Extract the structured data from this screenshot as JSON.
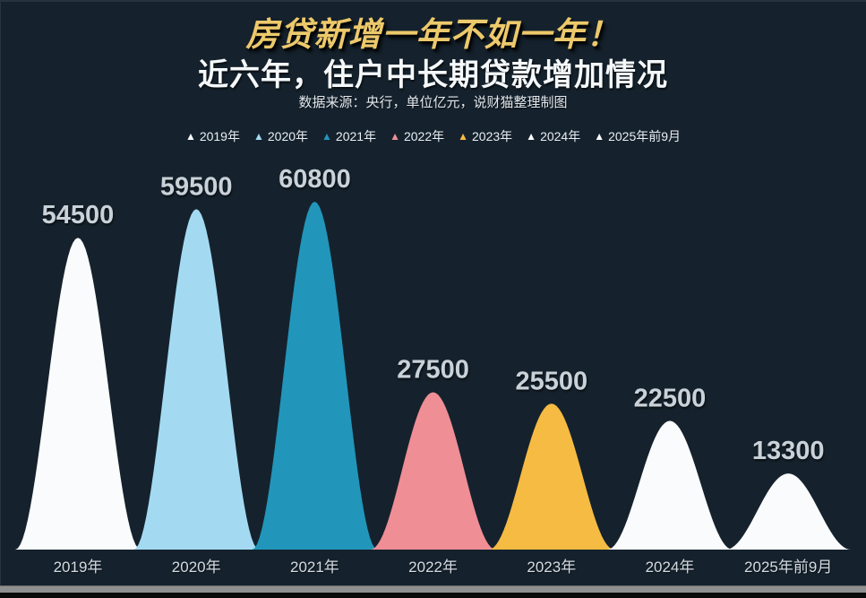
{
  "page": {
    "title": "房贷新增一年不如一年！",
    "subtitle": "近六年，住户中长期贷款增加情况",
    "source_note": "数据来源：央行，单位亿元，说财猫整理制图"
  },
  "colors": {
    "background": "#15222d",
    "title_gold": "#edc96b",
    "value_label": "#c9d1d9",
    "axis_label": "#d4dbe2",
    "legend_text": "#e9eef3"
  },
  "chart_data": {
    "type": "area",
    "shape": "bell-peaks",
    "title": "近六年，住户中长期贷款增加情况",
    "unit": "亿元",
    "categories": [
      "2019年",
      "2020年",
      "2021年",
      "2022年",
      "2023年",
      "2024年",
      "2025年前9月"
    ],
    "values": [
      54500,
      59500,
      60800,
      27500,
      25500,
      22500,
      13300
    ],
    "series_colors": [
      "#fafbfc",
      "#a3daf2",
      "#2196ba",
      "#ef8e95",
      "#f6bb43",
      "#fafbfc",
      "#fafbfc"
    ],
    "ylim": [
      0,
      60800
    ],
    "grid": false,
    "legend_position": "top",
    "legend": [
      {
        "label": "2019年",
        "color": "#fafbfc"
      },
      {
        "label": "2020年",
        "color": "#a3daf2"
      },
      {
        "label": "2021年",
        "color": "#2196ba"
      },
      {
        "label": "2022年",
        "color": "#ef8e95"
      },
      {
        "label": "2023年",
        "color": "#f6bb43"
      },
      {
        "label": "2024年",
        "color": "#fafbfc"
      },
      {
        "label": "2025年前9月",
        "color": "#fafbfc"
      }
    ]
  }
}
